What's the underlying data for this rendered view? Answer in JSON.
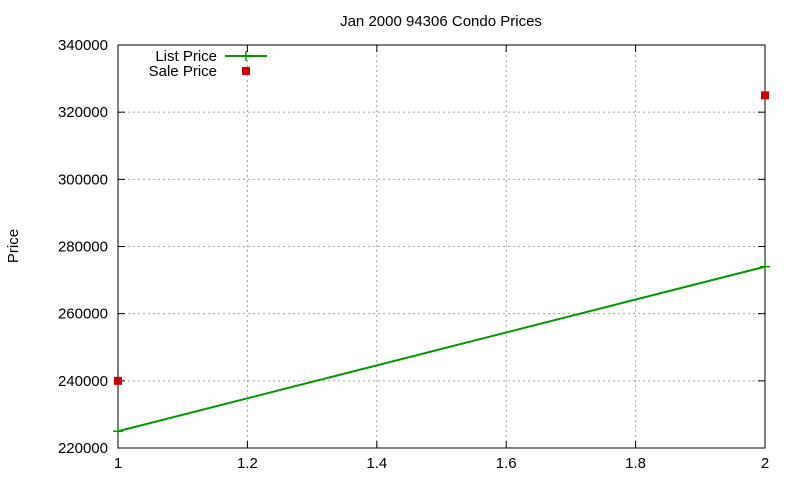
{
  "chart_data": {
    "type": "line",
    "title": "Jan 2000 94306 Condo Prices",
    "xlabel": "",
    "ylabel": "Price",
    "xlim": [
      1,
      2
    ],
    "ylim": [
      220000,
      340000
    ],
    "x_ticks": [
      1,
      1.2,
      1.4,
      1.6,
      1.8,
      2
    ],
    "x_tick_labels": [
      "1",
      "1.2",
      "1.4",
      "1.6",
      "1.8",
      "2"
    ],
    "y_ticks": [
      220000,
      240000,
      260000,
      280000,
      300000,
      320000,
      340000
    ],
    "y_tick_labels": [
      "220000",
      "240000",
      "260000",
      "280000",
      "300000",
      "320000",
      "340000"
    ],
    "grid": true,
    "legend_position": "top-left",
    "series": [
      {
        "name": "List Price",
        "style": "linespoints",
        "marker": "plus",
        "color": "#009900",
        "points": [
          {
            "x": 1,
            "y": 225000
          },
          {
            "x": 2,
            "y": 274000
          }
        ]
      },
      {
        "name": "Sale Price",
        "style": "points",
        "marker": "square",
        "color": "#cc0000",
        "points": [
          {
            "x": 1,
            "y": 240000
          },
          {
            "x": 2,
            "y": 325000
          }
        ]
      }
    ]
  }
}
